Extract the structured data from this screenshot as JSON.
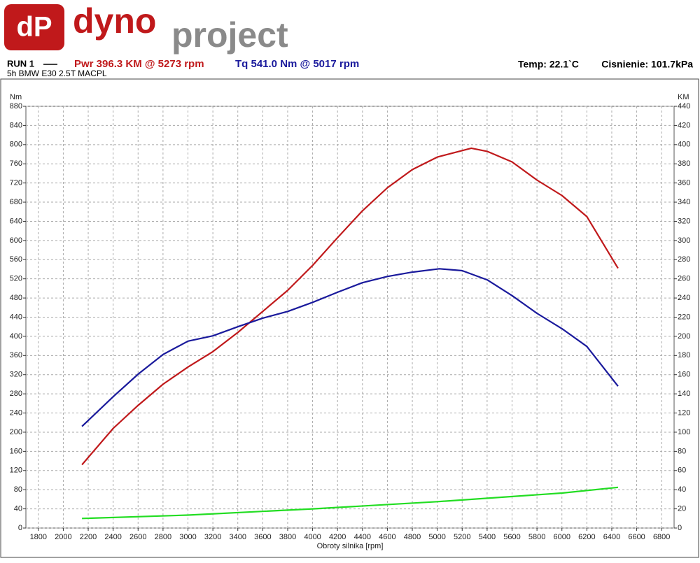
{
  "header": {
    "logo_mark": "dP",
    "logo_word_1": "dyno",
    "logo_word_2": "project",
    "run": "RUN 1",
    "power": "Pwr  396.3 KM @ 5273 rpm",
    "torque": "Tq 541.0 Nm @ 5017 rpm",
    "temp": "Temp: 22.1`C",
    "pressure": "Cisnienie: 101.7kPa",
    "subtitle": "5h BMW E30  2.5T MACPL"
  },
  "chart_data": {
    "type": "line",
    "y_label": "Nm",
    "y2_label": "KM",
    "x_label": "Obroty silnika [rpm]",
    "xlim": [
      1700,
      6900
    ],
    "xticks": [
      1800,
      2000,
      2200,
      2400,
      2600,
      2800,
      3000,
      3200,
      3400,
      3600,
      3800,
      4000,
      4200,
      4400,
      4600,
      4800,
      5000,
      5200,
      5400,
      5600,
      5800,
      6000,
      6200,
      6400,
      6600,
      6800
    ],
    "ylim": [
      0,
      880
    ],
    "yticks": [
      0,
      40,
      80,
      120,
      160,
      200,
      240,
      280,
      320,
      360,
      400,
      440,
      480,
      520,
      560,
      600,
      640,
      680,
      720,
      760,
      800,
      840,
      880
    ],
    "y2lim": [
      0,
      440
    ],
    "y2ticks": [
      0,
      20,
      40,
      60,
      80,
      100,
      120,
      140,
      160,
      180,
      200,
      220,
      240,
      260,
      280,
      300,
      320,
      340,
      360,
      380,
      400,
      420,
      440
    ],
    "grid": true,
    "series": [
      {
        "color": "#c0191b",
        "axis": "y2",
        "x": [
          2150,
          2400,
          2600,
          2800,
          3000,
          3200,
          3400,
          3600,
          3800,
          4000,
          4200,
          4400,
          4600,
          4800,
          5000,
          5273,
          5400,
          5600,
          5800,
          6000,
          6200,
          6450
        ],
        "values": [
          66,
          104,
          128,
          150,
          168,
          184,
          204,
          226,
          248,
          274,
          303,
          331,
          355,
          374,
          387,
          396.3,
          393,
          382,
          363,
          347,
          325,
          271
        ]
      },
      {
        "color": "#1a1a9c",
        "x": [
          2150,
          2400,
          2600,
          2800,
          3000,
          3200,
          3400,
          3600,
          3800,
          4000,
          4200,
          4400,
          4600,
          4800,
          5017,
          5200,
          5400,
          5600,
          5800,
          6000,
          6200,
          6450
        ],
        "values": [
          212,
          274,
          321,
          362,
          390,
          401,
          420,
          438,
          452,
          471,
          492,
          512,
          525,
          534,
          541,
          537,
          518,
          485,
          448,
          416,
          379,
          296
        ]
      },
      {
        "color": "#22dd22",
        "x": [
          2150,
          3000,
          4000,
          5000,
          6000,
          6450
        ],
        "values": [
          20,
          27,
          40,
          55,
          73,
          85
        ]
      }
    ]
  }
}
